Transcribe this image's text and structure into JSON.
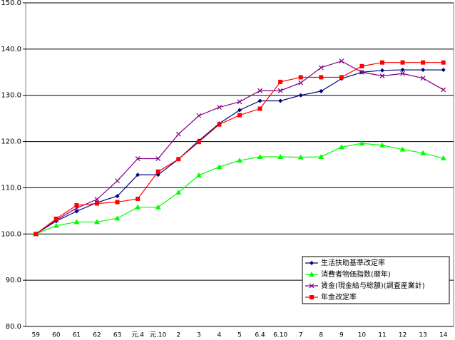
{
  "chart_data": {
    "type": "line",
    "categories": [
      "59",
      "60",
      "61",
      "62",
      "63",
      "元.4",
      "元.10",
      "2",
      "3",
      "4",
      "5",
      "6.4",
      "6.10",
      "7",
      "8",
      "9",
      "10",
      "11",
      "12",
      "13",
      "14"
    ],
    "series": [
      {
        "name": "生活扶助基準改定率",
        "color": "#000080",
        "marker": "diamond",
        "values": [
          100,
          102.8,
          104.9,
          106.8,
          108.2,
          112.8,
          112.8,
          116.2,
          120.2,
          123.9,
          126.8,
          128.8,
          128.8,
          130.0,
          130.9,
          133.6,
          135.0,
          135.4,
          135.5,
          135.5,
          135.5
        ]
      },
      {
        "name": "消費者物価指数(暦年)",
        "color": "#00ff00",
        "marker": "triangle",
        "values": [
          100,
          101.8,
          102.6,
          102.6,
          103.4,
          105.8,
          105.8,
          109.0,
          112.7,
          114.5,
          115.9,
          116.7,
          116.7,
          116.6,
          116.7,
          118.8,
          119.6,
          119.2,
          118.3,
          117.5,
          116.4
        ]
      },
      {
        "name": "賃金(現金給与総額)(調査産業計)",
        "color": "#800080",
        "marker": "x",
        "values": [
          100,
          103.0,
          105.6,
          107.5,
          111.5,
          116.3,
          116.3,
          121.6,
          125.6,
          127.4,
          128.6,
          131.0,
          131.0,
          132.7,
          136.0,
          137.4,
          135.0,
          134.2,
          134.7,
          133.7,
          131.2
        ]
      },
      {
        "name": "年金改定率",
        "color": "#ff0000",
        "marker": "square",
        "values": [
          100,
          103.3,
          106.2,
          106.6,
          106.9,
          107.6,
          113.5,
          116.2,
          119.9,
          123.7,
          125.7,
          127.1,
          132.9,
          133.9,
          133.9,
          133.9,
          136.3,
          137.1,
          137.1,
          137.1,
          137.1
        ]
      }
    ],
    "ylim": [
      80,
      150
    ],
    "yticks": [
      {
        "value": 80,
        "label": "80.0"
      },
      {
        "value": 90,
        "label": "90.0"
      },
      {
        "value": 100,
        "label": "100.0"
      },
      {
        "value": 110,
        "label": "110.0"
      },
      {
        "value": 120,
        "label": "120.0"
      },
      {
        "value": 130,
        "label": "130.0"
      },
      {
        "value": 140,
        "label": "140.0"
      },
      {
        "value": 150,
        "label": "150.0"
      }
    ],
    "grid": true,
    "legend": "lower right"
  }
}
